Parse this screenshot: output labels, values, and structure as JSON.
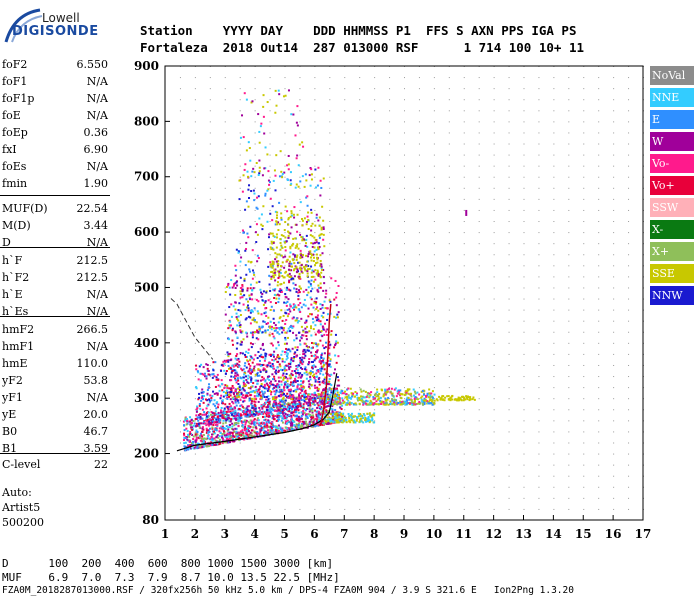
{
  "logo": {
    "line1": "Lowell",
    "line2": "DIGISONDE"
  },
  "header": {
    "row1": "Station    YYYY DAY    DDD HHMMSS P1  FFS S AXN PPS IGA PS",
    "row2": "Fortaleza  2018 Out14  287 013000 RSF      1 714 100 10+ 11"
  },
  "params": [
    {
      "k": "foF2",
      "v": "6.550"
    },
    {
      "k": "foF1",
      "v": "N/A"
    },
    {
      "k": "foF1p",
      "v": "N/A"
    },
    {
      "k": "foE",
      "v": "N/A"
    },
    {
      "k": "foEp",
      "v": "0.36"
    },
    {
      "k": "fxI",
      "v": "6.90"
    },
    {
      "k": "foEs",
      "v": "N/A"
    },
    {
      "k": "fmin",
      "v": "1.90"
    },
    {
      "k": "MUF(D)",
      "v": "22.54"
    },
    {
      "k": "M(D)",
      "v": "3.44"
    },
    {
      "k": "D",
      "v": "N/A"
    },
    {
      "k": "h`F",
      "v": "212.5"
    },
    {
      "k": "h`F2",
      "v": "212.5"
    },
    {
      "k": "h`E",
      "v": "N/A"
    },
    {
      "k": "h`Es",
      "v": "N/A"
    },
    {
      "k": "hmF2",
      "v": "266.5"
    },
    {
      "k": "hmF1",
      "v": "N/A"
    },
    {
      "k": "hmE",
      "v": "110.0"
    },
    {
      "k": "yF2",
      "v": "53.8"
    },
    {
      "k": "yF1",
      "v": "N/A"
    },
    {
      "k": "yE",
      "v": "20.0"
    },
    {
      "k": "B0",
      "v": "46.7"
    },
    {
      "k": "B1",
      "v": "3.59"
    },
    {
      "k": "C-level",
      "v": "22"
    }
  ],
  "auto": {
    "line1": "Auto:",
    "line2": "Artist5",
    "line3": "500200"
  },
  "legend": [
    {
      "label": "NoVal",
      "color": "#8c8c8c"
    },
    {
      "label": "NNE",
      "color": "#33ccff"
    },
    {
      "label": "E",
      "color": "#2f8fff"
    },
    {
      "label": "W",
      "color": "#a0009a"
    },
    {
      "label": "Vo-",
      "color": "#ff1a8c"
    },
    {
      "label": "Vo+",
      "color": "#e8003a"
    },
    {
      "label": "SSW",
      "color": "#ffb0b8"
    },
    {
      "label": "X-",
      "color": "#0a7a12"
    },
    {
      "label": "X+",
      "color": "#8fbf5a"
    },
    {
      "label": "SSE",
      "color": "#c8c800"
    },
    {
      "label": "NNW",
      "color": "#1a1ad0"
    }
  ],
  "chart_data": {
    "type": "scatter",
    "xticks": [
      "1",
      "2",
      "3",
      "4",
      "5",
      "6",
      "7",
      "8",
      "9",
      "10",
      "11",
      "12",
      "13",
      "14",
      "15",
      "16",
      "17"
    ],
    "yticks": [
      "200",
      "300",
      "400",
      "500",
      "600",
      "700",
      "800",
      "900"
    ],
    "ybottom": "80",
    "xlim": [
      1,
      17
    ],
    "ylim": [
      80,
      900
    ],
    "trace_solid": [
      [
        1.4,
        205
      ],
      [
        2,
        215
      ],
      [
        3,
        222
      ],
      [
        4,
        230
      ],
      [
        5,
        238
      ],
      [
        5.6,
        245
      ],
      [
        6.0,
        252
      ],
      [
        6.3,
        262
      ],
      [
        6.5,
        275
      ],
      [
        6.6,
        300
      ],
      [
        6.7,
        330
      ],
      [
        6.75,
        345
      ]
    ],
    "trace_dashed": [
      [
        1.2,
        480
      ],
      [
        1.4,
        470
      ],
      [
        1.7,
        440
      ],
      [
        2.0,
        410
      ],
      [
        2.3,
        390
      ],
      [
        2.6,
        370
      ]
    ]
  },
  "footer": {
    "row1": "D      100  200  400  600  800 1000 1500 3000 [km]",
    "row2": "MUF    6.9  7.0  7.3  7.9  8.7 10.0 13.5 22.5 [MHz]",
    "row3": "FZA0M_2018287013000.RSF / 320fx256h 50 kHz 5.0 km / DPS-4 FZA0M 904 / 3.9 S 321.6 E   Ion2Png 1.3.20"
  }
}
